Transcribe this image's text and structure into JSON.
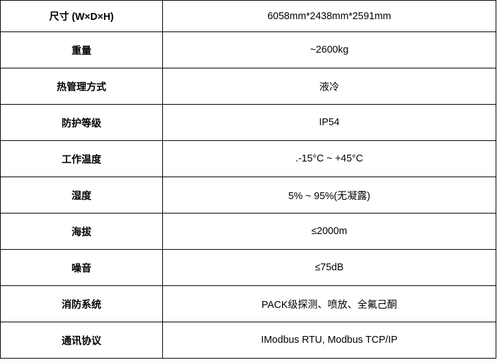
{
  "rows": [
    {
      "label": "尺寸 (W×D×H)",
      "value": "6058mm*2438mm*2591mm"
    },
    {
      "label": "重量",
      "value": "~2600kg"
    },
    {
      "label": "热管理方式",
      "value": "液冷"
    },
    {
      "label": "防护等级",
      "value": "IP54"
    },
    {
      "label": "工作温度",
      "value": ".-15°C ~ +45°C"
    },
    {
      "label": "湿度",
      "value": "5% ~ 95%(无凝露)"
    },
    {
      "label": "海拔",
      "value": "≤2000m"
    },
    {
      "label": "噪音",
      "value": "≤75dB"
    },
    {
      "label": "消防系统",
      "value": "PACK级探测、喷放、全氟己酮"
    },
    {
      "label": "通讯协议",
      "value": "IModbus RTU, Modbus TCP/IP"
    }
  ]
}
